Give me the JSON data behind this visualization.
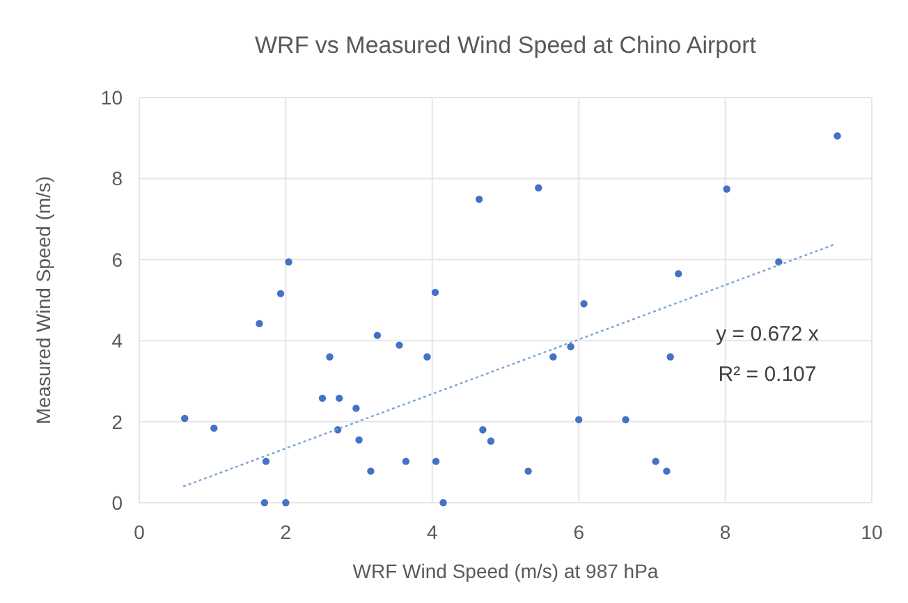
{
  "chart_data": {
    "type": "scatter",
    "title": "WRF vs Measured Wind Speed at Chino Airport",
    "xlabel": "WRF Wind Speed (m/s) at 987 hPa",
    "ylabel": "Measured Wind Speed (m/s)",
    "xlim": [
      0,
      10
    ],
    "ylim": [
      0,
      10
    ],
    "xticks": [
      0,
      2,
      4,
      6,
      8,
      10
    ],
    "yticks": [
      0,
      2,
      4,
      6,
      8,
      10
    ],
    "grid": true,
    "marker": "circle",
    "series": [
      {
        "color": "#4472c4",
        "x": [
          0.62,
          1.02,
          1.64,
          1.73,
          1.71,
          2.0,
          1.93,
          2.04,
          2.6,
          2.5,
          2.73,
          2.71,
          2.96,
          3.0,
          3.16,
          3.25,
          3.55,
          3.64,
          3.93,
          4.04,
          4.05,
          4.15,
          4.64,
          4.69,
          4.8,
          5.31,
          5.45,
          5.65,
          5.89,
          6.0,
          6.07,
          6.64,
          7.05,
          7.2,
          7.25,
          7.36,
          8.02,
          8.73,
          9.53
        ],
        "values": [
          2.08,
          1.84,
          4.42,
          1.02,
          0,
          0,
          5.16,
          5.94,
          3.6,
          2.58,
          2.58,
          1.8,
          2.33,
          1.55,
          0.78,
          4.13,
          3.89,
          1.02,
          3.6,
          5.19,
          1.02,
          0,
          7.49,
          1.8,
          1.52,
          0.78,
          7.77,
          3.6,
          3.85,
          2.05,
          4.91,
          2.05,
          1.02,
          0.78,
          3.6,
          5.65,
          7.74,
          5.94,
          9.05
        ]
      },
      {
        "type": "line",
        "color": "#7fa3d6",
        "line_style": "dotted",
        "marker": "none",
        "x": [
          0.6,
          9.5
        ],
        "values": [
          0.4,
          6.38
        ]
      }
    ],
    "annotations": [
      "y = 0.672 x",
      "R² = 0.107"
    ]
  }
}
